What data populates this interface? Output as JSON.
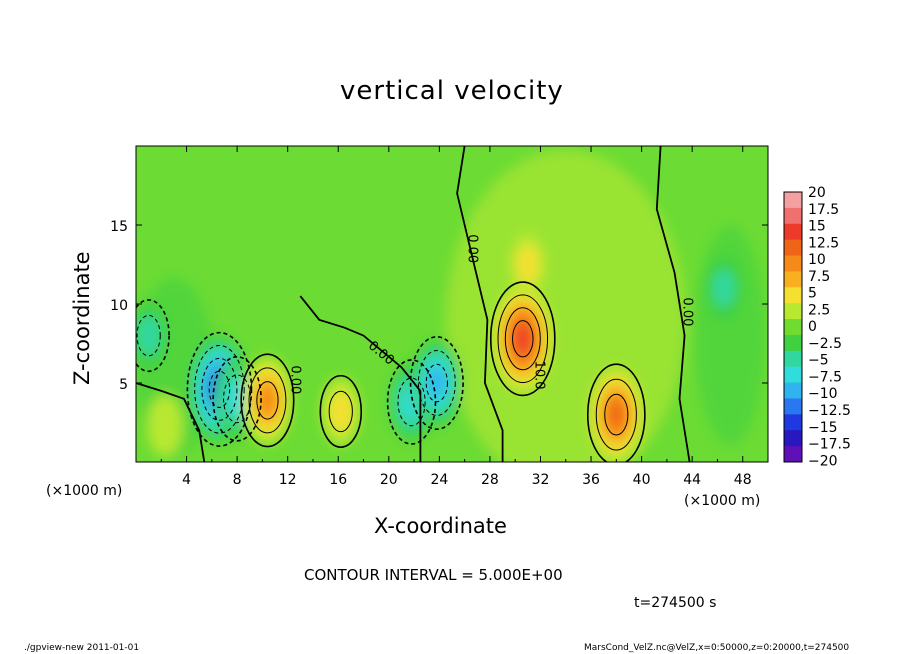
{
  "chart_data": {
    "type": "heatmap",
    "title": "vertical velocity",
    "xlabel": "X-coordinate",
    "ylabel": "Z-coordinate",
    "x_unit_label": "(×1000 m)",
    "xlim": [
      0,
      50
    ],
    "ylim": [
      0,
      20
    ],
    "x_ticks": [
      4,
      8,
      12,
      16,
      20,
      24,
      28,
      32,
      36,
      40,
      44,
      48
    ],
    "y_ticks": [
      5,
      10,
      15
    ],
    "colorbar": {
      "levels": [
        "20",
        "17.5",
        "15",
        "12.5",
        "10",
        "7.5",
        "5",
        "2.5",
        "0",
        "−2.5",
        "−5",
        "−7.5",
        "−10",
        "−12.5",
        "−15",
        "−17.5",
        "−20"
      ],
      "colors": [
        "#f5a0a0",
        "#f07070",
        "#ee3a2a",
        "#f06418",
        "#f58a18",
        "#f8b020",
        "#f5e030",
        "#b8e830",
        "#70dc30",
        "#40d040",
        "#30d8a0",
        "#30dcdc",
        "#30b4f0",
        "#2a78f0",
        "#2038e0",
        "#2818c0",
        "#6010b8"
      ]
    },
    "contour_interval": "CONTOUR INTERVAL = 5.000E+00",
    "contour_labels": [
      "0.00",
      "0.00",
      "0.00",
      "0.00",
      "10.0"
    ],
    "features": [
      {
        "x": 2.3,
        "z": 2.3,
        "w": 3.5
      },
      {
        "x": 6.6,
        "z": 4.6,
        "w": -15
      },
      {
        "x": 8.0,
        "z": 4.0,
        "w": -8
      },
      {
        "x": 10.4,
        "z": 3.9,
        "w": 10
      },
      {
        "x": 16.2,
        "z": 3.2,
        "w": 5
      },
      {
        "x": 21.8,
        "z": 3.8,
        "w": -8
      },
      {
        "x": 23.8,
        "z": 5.0,
        "w": -10
      },
      {
        "x": 30.6,
        "z": 7.8,
        "w": 15
      },
      {
        "x": 31.0,
        "z": 12.5,
        "w": 4
      },
      {
        "x": 38.0,
        "z": 3.0,
        "w": 12
      },
      {
        "x": 1.0,
        "z": 8.0,
        "w": -5
      },
      {
        "x": 46.5,
        "z": 11.0,
        "w": -4
      }
    ],
    "time": "t=274500 s",
    "footer_left": "./gpview-new  2011-01-01",
    "footer_right": "MarsCond_VelZ.nc@VelZ,x=0:50000,z=0:20000,t=274500"
  }
}
